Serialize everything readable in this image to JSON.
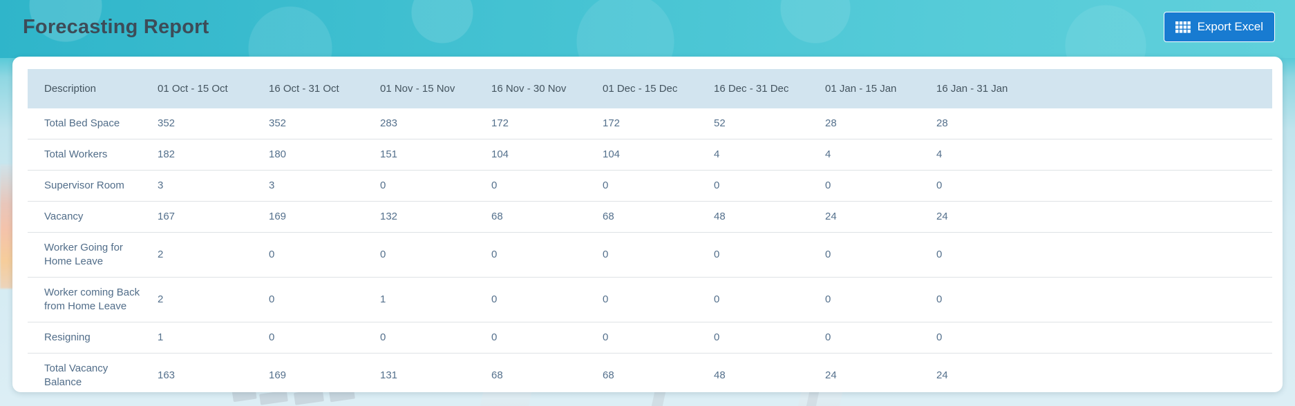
{
  "page": {
    "title": "Forecasting Report"
  },
  "toolbar": {
    "export_label": "Export Excel",
    "export_icon": "excel-grid-icon"
  },
  "colors": {
    "hero_teal": "#44c2d2",
    "button_blue": "#187bd1",
    "table_header_bg": "#d2e4ef",
    "title_text": "#3d4c58",
    "table_text": "#54708c"
  },
  "table": {
    "columns": [
      "Description",
      "01 Oct - 15 Oct",
      "16 Oct - 31 Oct",
      "01 Nov - 15 Nov",
      "16 Nov - 30 Nov",
      "01 Dec - 15 Dec",
      "16 Dec - 31 Dec",
      "01 Jan - 15 Jan",
      "16 Jan - 31 Jan"
    ],
    "rows": [
      {
        "label": "Total Bed Space",
        "values": [
          "352",
          "352",
          "283",
          "172",
          "172",
          "52",
          "28",
          "28"
        ]
      },
      {
        "label": "Total Workers",
        "values": [
          "182",
          "180",
          "151",
          "104",
          "104",
          "4",
          "4",
          "4"
        ]
      },
      {
        "label": "Supervisor Room",
        "values": [
          "3",
          "3",
          "0",
          "0",
          "0",
          "0",
          "0",
          "0"
        ]
      },
      {
        "label": "Vacancy",
        "values": [
          "167",
          "169",
          "132",
          "68",
          "68",
          "48",
          "24",
          "24"
        ]
      },
      {
        "label": "Worker Going for Home Leave",
        "values": [
          "2",
          "0",
          "0",
          "0",
          "0",
          "0",
          "0",
          "0"
        ]
      },
      {
        "label": "Worker coming Back from Home Leave",
        "values": [
          "2",
          "0",
          "1",
          "0",
          "0",
          "0",
          "0",
          "0"
        ]
      },
      {
        "label": "Resigning",
        "values": [
          "1",
          "0",
          "0",
          "0",
          "0",
          "0",
          "0",
          "0"
        ]
      },
      {
        "label": "Total Vacancy Balance",
        "values": [
          "163",
          "169",
          "131",
          "68",
          "68",
          "48",
          "24",
          "24"
        ]
      }
    ]
  }
}
